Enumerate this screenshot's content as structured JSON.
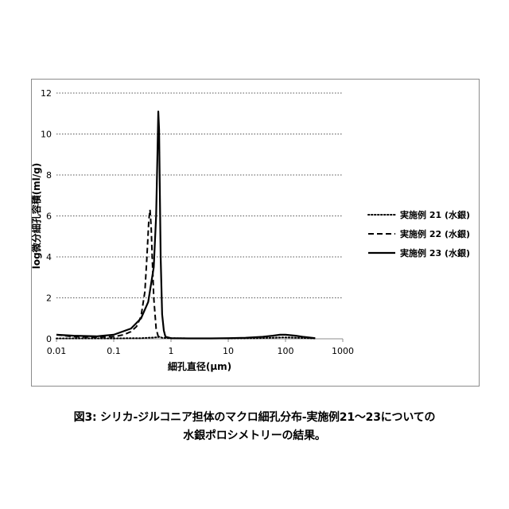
{
  "caption": {
    "line1": "図3: シリカ-ジルコニア担体のマクロ細孔分布-実施例21～23についての",
    "line2": "水銀ポロシメトリーの結果。"
  },
  "chart_data": {
    "type": "line",
    "xlabel": "細孔直径(μm)",
    "ylabel": "log微分細孔容積(ml/g)",
    "xscale": "log",
    "xlim": [
      0.01,
      1000
    ],
    "ylim": [
      0,
      12
    ],
    "xticks": [
      "0.01",
      "0.1",
      "1",
      "10",
      "100",
      "1000"
    ],
    "yticks": [
      "0",
      "2",
      "4",
      "6",
      "8",
      "10",
      "12"
    ],
    "grid": "horizontal-dotted",
    "legend_position": "right",
    "series": [
      {
        "name": "実施例 21 (水銀)",
        "style": "dotted",
        "x": [
          0.01,
          0.02,
          0.05,
          0.1,
          0.2,
          0.3,
          0.4,
          0.5,
          0.6,
          0.63,
          0.66,
          0.7,
          1,
          2,
          5,
          10,
          30,
          60,
          90,
          120,
          200,
          320
        ],
        "y": [
          0.02,
          0.02,
          0.02,
          0.02,
          0.03,
          0.03,
          0.05,
          0.06,
          0.08,
          0.1,
          0.08,
          0.05,
          0.03,
          0.02,
          0.02,
          0.02,
          0.03,
          0.05,
          0.07,
          0.06,
          0.04,
          0.02
        ]
      },
      {
        "name": "実施例 22 (水銀)",
        "style": "dashed",
        "x": [
          0.01,
          0.02,
          0.05,
          0.1,
          0.15,
          0.2,
          0.25,
          0.3,
          0.35,
          0.38,
          0.41,
          0.43,
          0.45,
          0.47,
          0.5,
          0.55,
          0.6
        ],
        "y": [
          0.2,
          0.1,
          0.08,
          0.1,
          0.2,
          0.35,
          0.6,
          1.1,
          2.3,
          4.0,
          5.8,
          6.3,
          5.5,
          4.0,
          2.0,
          0.5,
          0.1
        ]
      },
      {
        "name": "実施例 23 (水銀)",
        "style": "solid",
        "x": [
          0.01,
          0.02,
          0.05,
          0.1,
          0.2,
          0.3,
          0.4,
          0.5,
          0.55,
          0.58,
          0.6,
          0.62,
          0.64,
          0.66,
          0.7,
          0.75,
          0.8,
          1,
          2,
          5,
          10,
          20,
          40,
          60,
          80,
          100,
          150,
          200,
          330
        ],
        "y": [
          0.2,
          0.15,
          0.12,
          0.2,
          0.5,
          1.0,
          1.8,
          3.5,
          6.0,
          9.0,
          11.1,
          10.2,
          7.0,
          4.0,
          1.2,
          0.4,
          0.1,
          0.03,
          0.02,
          0.02,
          0.03,
          0.05,
          0.1,
          0.15,
          0.2,
          0.2,
          0.15,
          0.1,
          0.03
        ]
      }
    ]
  }
}
